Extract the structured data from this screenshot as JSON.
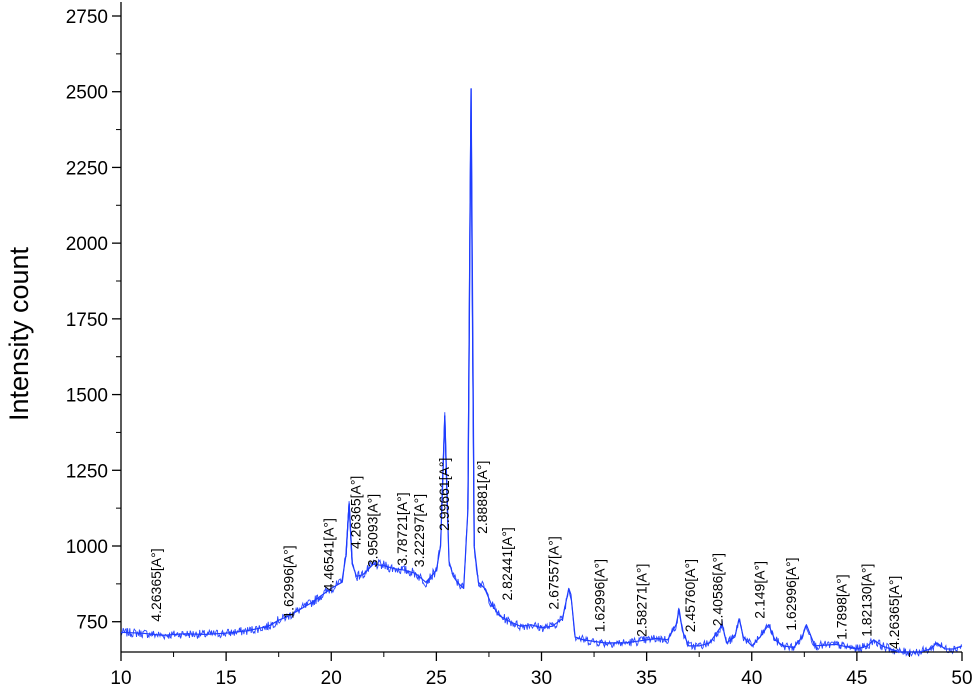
{
  "chart_data": {
    "type": "line",
    "title": "",
    "xlabel": "",
    "ylabel": "Intensity count",
    "xlim": [
      10,
      50
    ],
    "ylim": [
      650,
      2800
    ],
    "x_ticks": [
      10,
      15,
      20,
      25,
      30,
      35,
      40,
      45,
      50
    ],
    "y_ticks": [
      750,
      1000,
      1250,
      1500,
      1750,
      2000,
      2250,
      2500,
      2750
    ],
    "grid": false,
    "legend": "none",
    "colors": {
      "line": "#1f3dff",
      "axis": "#000000"
    },
    "series": [
      {
        "x": [
          10,
          11,
          12,
          13,
          14,
          15,
          16,
          17,
          17.5,
          18,
          18.5,
          19,
          19.5,
          20,
          20.5,
          20.7,
          20.85,
          21,
          21.2,
          21.5,
          22,
          22.5,
          23,
          23.5,
          24,
          24.5,
          25,
          25.2,
          25.4,
          25.5,
          25.6,
          25.8,
          26,
          26.3,
          26.5,
          26.6,
          26.65,
          26.7,
          26.8,
          27,
          27.3,
          27.6,
          28,
          28.5,
          29,
          29.5,
          30,
          30.5,
          31,
          31.3,
          31.4,
          31.6,
          32,
          33,
          34,
          35,
          35.5,
          36,
          36.4,
          36.55,
          36.7,
          37,
          37.5,
          38,
          38.4,
          38.6,
          38.8,
          39.2,
          39.4,
          39.6,
          40,
          40.4,
          40.8,
          41.1,
          41.5,
          42,
          42.4,
          42.6,
          43,
          44,
          45,
          45.5,
          45.8,
          46.2,
          47,
          48,
          48.5,
          48.8,
          49.2,
          49.6,
          50
        ],
        "y": [
          715,
          712,
          705,
          710,
          708,
          712,
          720,
          735,
          755,
          770,
          790,
          810,
          835,
          860,
          880,
          970,
          1140,
          940,
          900,
          905,
          940,
          935,
          925,
          920,
          910,
          880,
          920,
          1000,
          1430,
          1180,
          950,
          900,
          880,
          860,
          1120,
          2100,
          2510,
          1900,
          1000,
          880,
          860,
          810,
          770,
          750,
          735,
          740,
          730,
          735,
          760,
          860,
          840,
          700,
          690,
          680,
          680,
          690,
          695,
          690,
          740,
          790,
          720,
          670,
          670,
          680,
          720,
          740,
          680,
          700,
          760,
          700,
          670,
          700,
          740,
          690,
          670,
          665,
          700,
          740,
          670,
          675,
          660,
          670,
          690,
          670,
          650,
          650,
          660,
          680,
          660,
          660,
          670
        ],
        "peak_x": [
          20.85,
          25.4,
          26.65
        ],
        "peak_y": [
          1140,
          1430,
          2510
        ]
      }
    ],
    "annotations": [
      {
        "text": "4.26365[A°]",
        "x": 11.9,
        "y": 750
      },
      {
        "text": "1.62996[A°]",
        "x": 18.2,
        "y": 760
      },
      {
        "text": "4.46541[A°]",
        "x": 20.1,
        "y": 850
      },
      {
        "text": "4.26365[A°]",
        "x": 21.4,
        "y": 990
      },
      {
        "text": "3.95093[A°]",
        "x": 22.2,
        "y": 930
      },
      {
        "text": "3.78721[A°]",
        "x": 23.6,
        "y": 935
      },
      {
        "text": "3.22297[A°]",
        "x": 24.4,
        "y": 930
      },
      {
        "text": "2.99661[A°]",
        "x": 25.6,
        "y": 1050
      },
      {
        "text": "2.88881[A°]",
        "x": 27.4,
        "y": 1040
      },
      {
        "text": "2.82441[A°]",
        "x": 28.6,
        "y": 820
      },
      {
        "text": "2.67557[A°]",
        "x": 30.8,
        "y": 790
      },
      {
        "text": "1.62996[A°]",
        "x": 33.0,
        "y": 715
      },
      {
        "text": "2.58271[A°]",
        "x": 35.0,
        "y": 700
      },
      {
        "text": "2.45760[A°]",
        "x": 37.3,
        "y": 715
      },
      {
        "text": "2.40586[A°]",
        "x": 38.6,
        "y": 735
      },
      {
        "text": "2.149[A°]",
        "x": 40.6,
        "y": 760
      },
      {
        "text": "1.62996[A°]",
        "x": 42.1,
        "y": 720
      },
      {
        "text": "1.7898[A°]",
        "x": 44.5,
        "y": 690
      },
      {
        "text": "1.82130[A°]",
        "x": 45.7,
        "y": 700
      },
      {
        "text": "4.26365[A°]",
        "x": 47.0,
        "y": 660
      }
    ]
  }
}
